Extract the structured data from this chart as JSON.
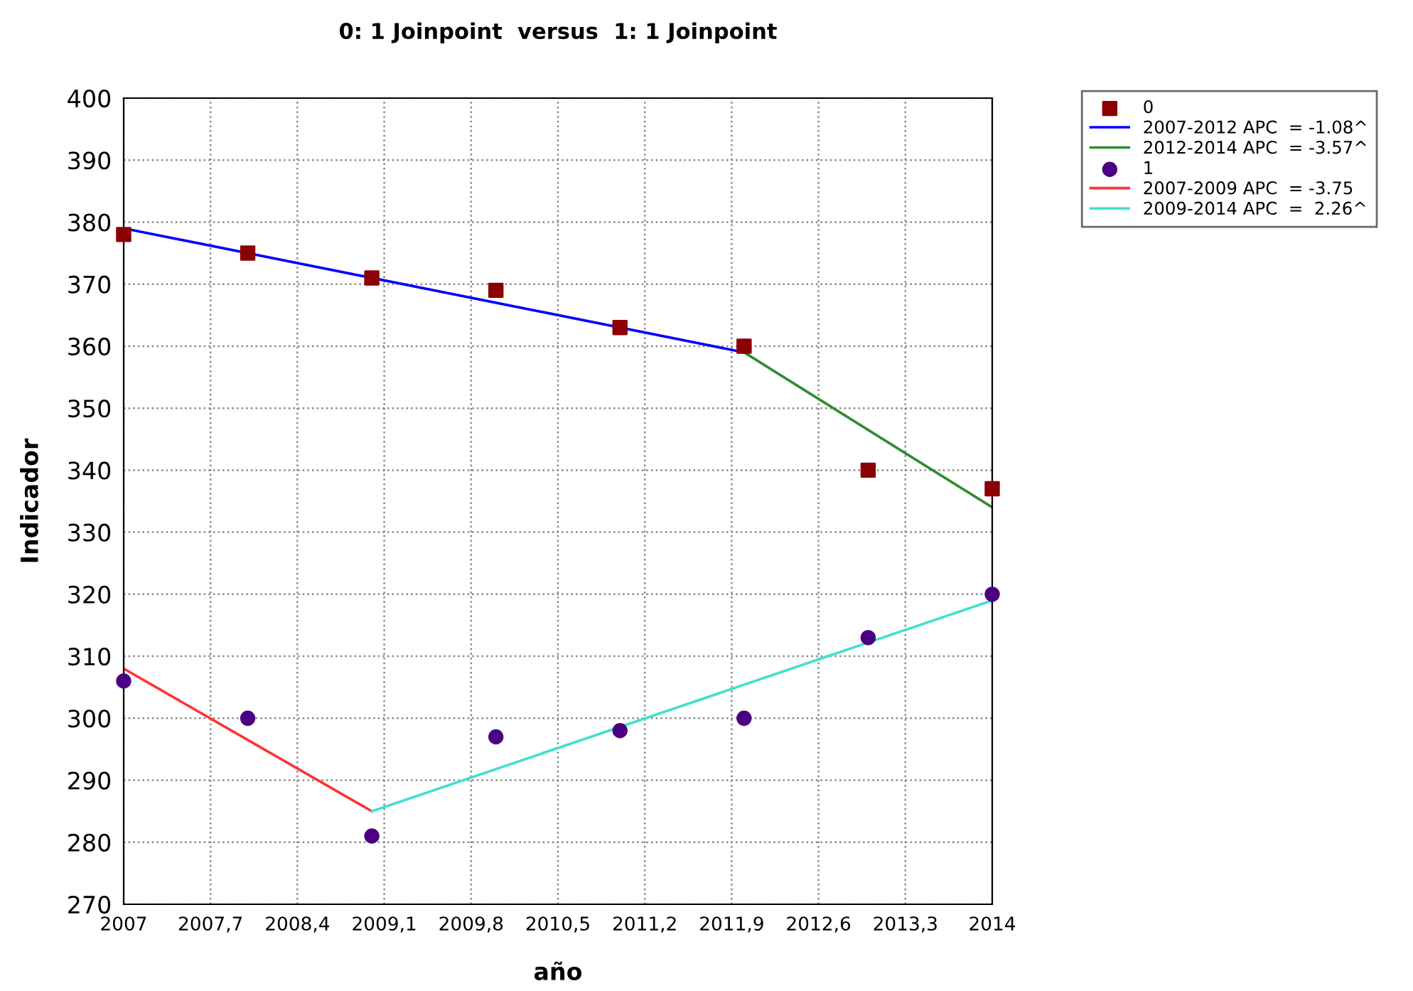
{
  "chart_data": {
    "type": "scatter",
    "title": "0: 1 Joinpoint  versus  1: 1 Joinpoint",
    "xlabel": "año",
    "ylabel": "Indicador",
    "series": [
      {
        "name": "0",
        "marker": "square",
        "color": "#8b0000",
        "x": [
          2007,
          2008,
          2009,
          2010,
          2011,
          2012,
          2013,
          2014
        ],
        "values": [
          378,
          375,
          371,
          369,
          363,
          360,
          340,
          337
        ]
      },
      {
        "name": "2007-2012 APC  = -1.08^",
        "type": "line",
        "color": "#0000ff",
        "x": [
          2007,
          2012
        ],
        "values": [
          379,
          359
        ]
      },
      {
        "name": "2012-2014 APC  = -3.57^",
        "type": "line",
        "color": "#2e8b2e",
        "x": [
          2012,
          2014
        ],
        "values": [
          359,
          334
        ]
      },
      {
        "name": "1",
        "marker": "circle",
        "color": "#4b0082",
        "x": [
          2007,
          2008,
          2009,
          2010,
          2011,
          2012,
          2013,
          2014
        ],
        "values": [
          306,
          300,
          281,
          297,
          298,
          300,
          313,
          320
        ]
      },
      {
        "name": "2007-2009 APC  = -3.75",
        "type": "line",
        "color": "#ff3333",
        "x": [
          2007,
          2009
        ],
        "values": [
          308,
          285
        ]
      },
      {
        "name": "2009-2014 APC  =  2.26^",
        "type": "line",
        "color": "#40e0d0",
        "x": [
          2009,
          2014
        ],
        "values": [
          285,
          319
        ]
      }
    ],
    "xlim": [
      2007,
      2014
    ],
    "ylim": [
      270,
      400
    ],
    "xticks": [
      2007,
      {
        "value": 2007.7,
        "label": "2007,7"
      },
      {
        "value": 2008.4,
        "label": "2008,4"
      },
      {
        "value": 2009.1,
        "label": "2009,1"
      },
      {
        "value": 2009.8,
        "label": "2009,8"
      },
      {
        "value": 2010.5,
        "label": "2010,5"
      },
      {
        "value": 2011.2,
        "label": "2011,2"
      },
      {
        "value": 2011.9,
        "label": "2011,9"
      },
      {
        "value": 2012.6,
        "label": "2012,6"
      },
      {
        "value": 2013.3,
        "label": "2013,3"
      },
      2014
    ],
    "yticks": [
      270,
      280,
      290,
      300,
      310,
      320,
      330,
      340,
      350,
      360,
      370,
      380,
      390,
      400
    ],
    "grid": true,
    "legend": "top right"
  }
}
